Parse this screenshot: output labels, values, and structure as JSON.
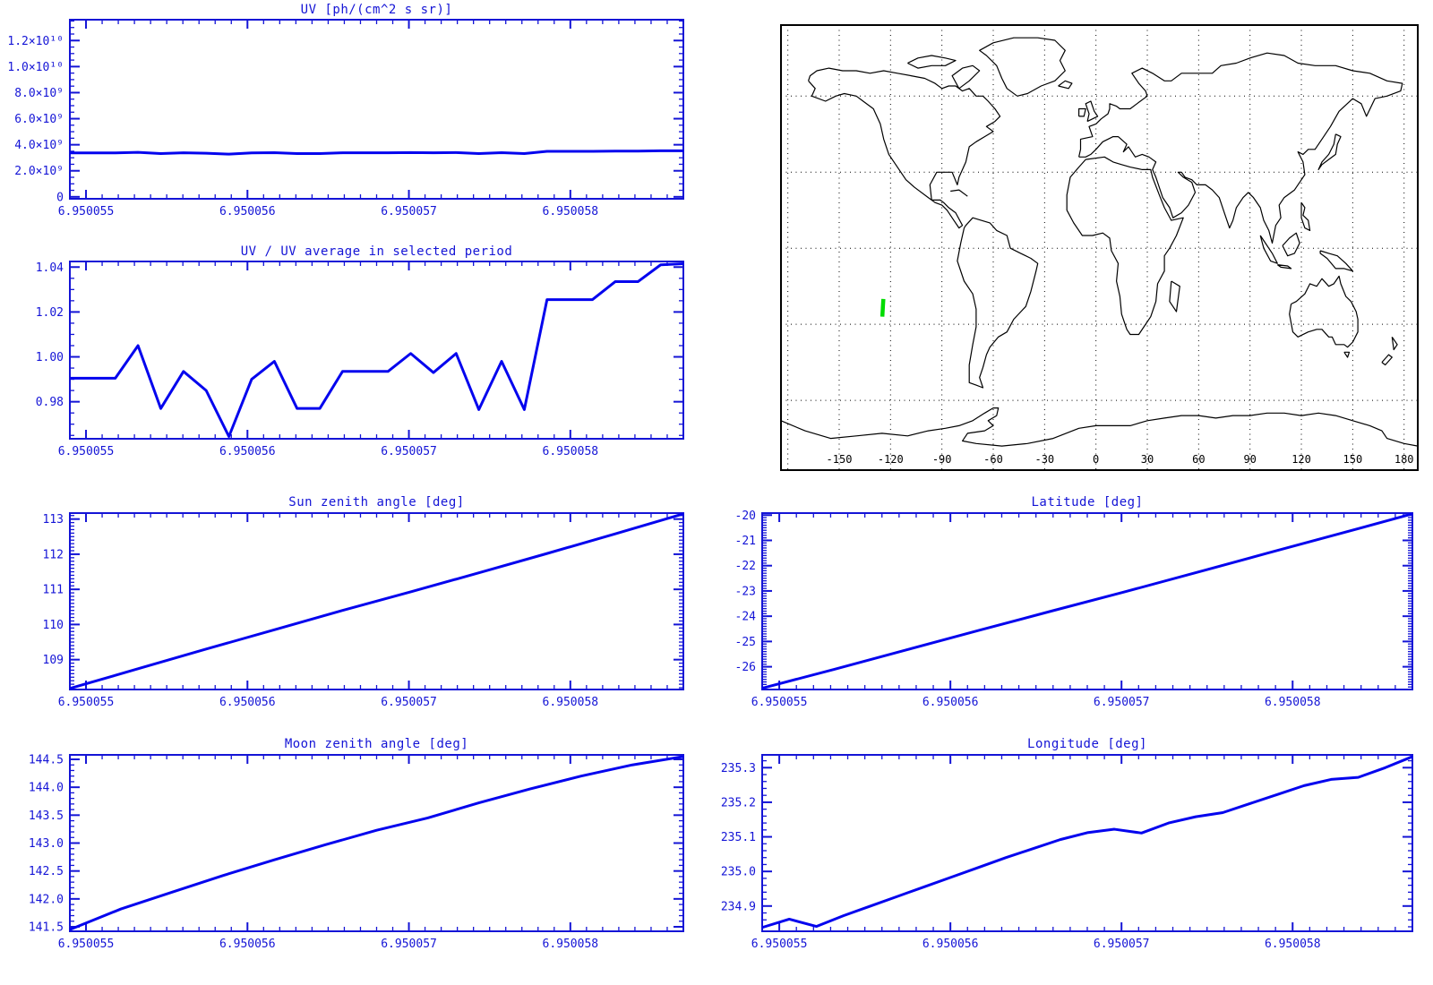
{
  "window": {
    "background": "#ffffff"
  },
  "colors": {
    "plot_blue": "#1414d6",
    "line_blue": "#0404ee",
    "map_black": "#000000",
    "track_green": "#00dc00"
  },
  "chart_data": [
    {
      "id": "uv",
      "type": "line",
      "title": "UV [ph/(cm^2 s sr)]",
      "x_tick_labels": [
        "6.950055",
        "6.950056",
        "6.950057",
        "6.950058"
      ],
      "y_tick_labels": [
        "0",
        "2.0×10⁹",
        "4.0×10⁹",
        "6.0×10⁹",
        "8.0×10⁹",
        "1.0×10¹⁰",
        "1.2×10¹⁰"
      ],
      "y_major": [
        0,
        2000000000.0,
        4000000000.0,
        6000000000.0,
        8000000000.0,
        10000000000.0,
        12000000000.0
      ],
      "y_minor_step": 500000000.0,
      "ylim": [
        -150000000.0,
        13600000000.0
      ],
      "values": [
        3370000000.0,
        3370000000.0,
        3370000000.0,
        3420000000.0,
        3320000000.0,
        3380000000.0,
        3350000000.0,
        3280000000.0,
        3370000000.0,
        3390000000.0,
        3320000000.0,
        3320000000.0,
        3380000000.0,
        3380000000.0,
        3380000000.0,
        3400000000.0,
        3380000000.0,
        3400000000.0,
        3320000000.0,
        3390000000.0,
        3320000000.0,
        3490000000.0,
        3490000000.0,
        3490000000.0,
        3510000000.0,
        3510000000.0,
        3540000000.0,
        3540000000.0
      ]
    },
    {
      "id": "ratio",
      "type": "line",
      "title": "UV / UV average in selected period",
      "x_tick_labels": [
        "6.950055",
        "6.950056",
        "6.950057",
        "6.950058"
      ],
      "y_tick_labels": [
        "0.98",
        "1.00",
        "1.02",
        "1.04"
      ],
      "y_major": [
        0.98,
        1.0,
        1.02,
        1.04
      ],
      "y_minor_step": 0.005,
      "ylim": [
        0.9635,
        1.0425
      ],
      "values": [
        0.9905,
        0.9905,
        0.9905,
        1.005,
        0.977,
        0.9935,
        0.985,
        0.9645,
        0.99,
        0.998,
        0.977,
        0.977,
        0.9935,
        0.9935,
        0.9935,
        1.0015,
        0.993,
        1.0015,
        0.9765,
        0.998,
        0.9765,
        1.0255,
        1.0255,
        1.0255,
        1.0335,
        1.0335,
        1.041,
        1.0415
      ]
    },
    {
      "id": "sun",
      "type": "line",
      "title": "Sun zenith angle [deg]",
      "x_tick_labels": [
        "6.950055",
        "6.950056",
        "6.950057",
        "6.950058"
      ],
      "y_tick_labels": [
        "109",
        "110",
        "111",
        "112",
        "113"
      ],
      "y_major": [
        109,
        110,
        111,
        112,
        113
      ],
      "y_minor_step": 0.1,
      "ylim": [
        108.15,
        113.17
      ],
      "values": [
        108.18,
        108.74,
        109.3,
        109.85,
        110.4,
        110.93,
        111.47,
        112.02,
        112.58,
        113.15
      ]
    },
    {
      "id": "moon",
      "type": "line",
      "title": "Moon zenith angle [deg]",
      "x_tick_labels": [
        "6.950055",
        "6.950056",
        "6.950057",
        "6.950058"
      ],
      "y_tick_labels": [
        "141.5",
        "142.0",
        "142.5",
        "143.0",
        "143.5",
        "144.0",
        "144.5"
      ],
      "y_major": [
        141.5,
        142.0,
        142.5,
        143.0,
        143.5,
        144.0,
        144.5
      ],
      "y_minor_step": 0.1,
      "ylim": [
        141.42,
        144.58
      ],
      "values": [
        141.45,
        141.82,
        142.12,
        142.42,
        142.7,
        142.97,
        143.23,
        143.45,
        143.72,
        143.97,
        144.2,
        144.4,
        144.55
      ]
    },
    {
      "id": "lat",
      "type": "line",
      "title": "Latitude [deg]",
      "x_tick_labels": [
        "6.950055",
        "6.950056",
        "6.950057",
        "6.950058"
      ],
      "y_tick_labels": [
        "-26",
        "-25",
        "-24",
        "-23",
        "-22",
        "-21",
        "-20"
      ],
      "y_major": [
        -26,
        -25,
        -24,
        -23,
        -22,
        -21,
        -20
      ],
      "y_minor_step": 0.1,
      "ylim": [
        -26.9,
        -19.92
      ],
      "values": [
        -26.85,
        -26.1,
        -25.33,
        -24.56,
        -23.8,
        -23.05,
        -22.28,
        -21.5,
        -20.73,
        -19.95
      ]
    },
    {
      "id": "lon",
      "type": "line",
      "title": "Longitude [deg]",
      "x_tick_labels": [
        "6.950055",
        "6.950056",
        "6.950057",
        "6.950058"
      ],
      "y_tick_labels": [
        "234.9",
        "235.0",
        "235.1",
        "235.2",
        "235.3"
      ],
      "y_major": [
        234.9,
        235.0,
        235.1,
        235.2,
        235.3
      ],
      "y_minor_step": 0.02,
      "ylim": [
        234.827,
        235.337
      ],
      "values": [
        234.838,
        234.862,
        234.841,
        234.872,
        234.9,
        234.928,
        234.956,
        234.984,
        235.012,
        235.04,
        235.066,
        235.092,
        235.112,
        235.122,
        235.111,
        235.14,
        235.158,
        235.17,
        235.196,
        235.222,
        235.248,
        235.266,
        235.272,
        235.3,
        235.332
      ]
    },
    {
      "id": "map",
      "type": "map",
      "x_tick_labels": [
        "-150",
        "-120",
        "-90",
        "-60",
        "-30",
        "0",
        "30",
        "60",
        "90",
        "120",
        "150",
        "180"
      ],
      "x_tick_lons": [
        -150,
        -120,
        -90,
        -60,
        -30,
        0,
        30,
        60,
        90,
        120,
        150,
        180
      ],
      "grid_step_deg": 30,
      "lon_range": [
        -184,
        188
      ],
      "lat_range": [
        -87.5,
        88.0
      ],
      "track": {
        "lon_top": -124.2,
        "lat_top": -20,
        "lon_bottom": -124.8,
        "lat_bottom": -27
      }
    }
  ]
}
